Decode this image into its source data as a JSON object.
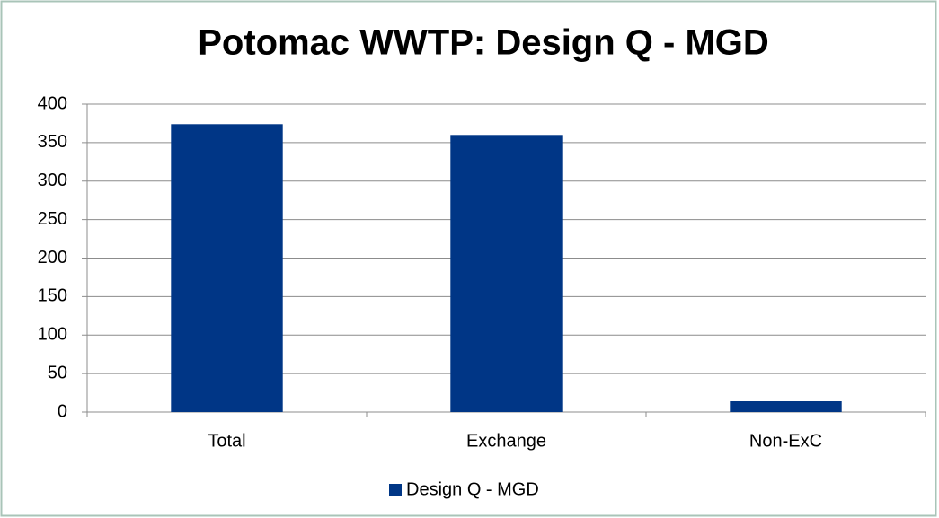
{
  "chart_data": {
    "type": "bar",
    "title": "Potomac WWTP: Design Q - MGD",
    "categories": [
      "Total",
      "Exchange",
      "Non-ExC"
    ],
    "series": [
      {
        "name": "Design Q - MGD",
        "color": "#003686",
        "values": [
          374,
          360,
          14
        ]
      }
    ],
    "ylim": [
      0,
      400
    ],
    "yticks": [
      0,
      50,
      100,
      150,
      200,
      250,
      300,
      350,
      400
    ],
    "grid": true,
    "legend": "bottom"
  }
}
